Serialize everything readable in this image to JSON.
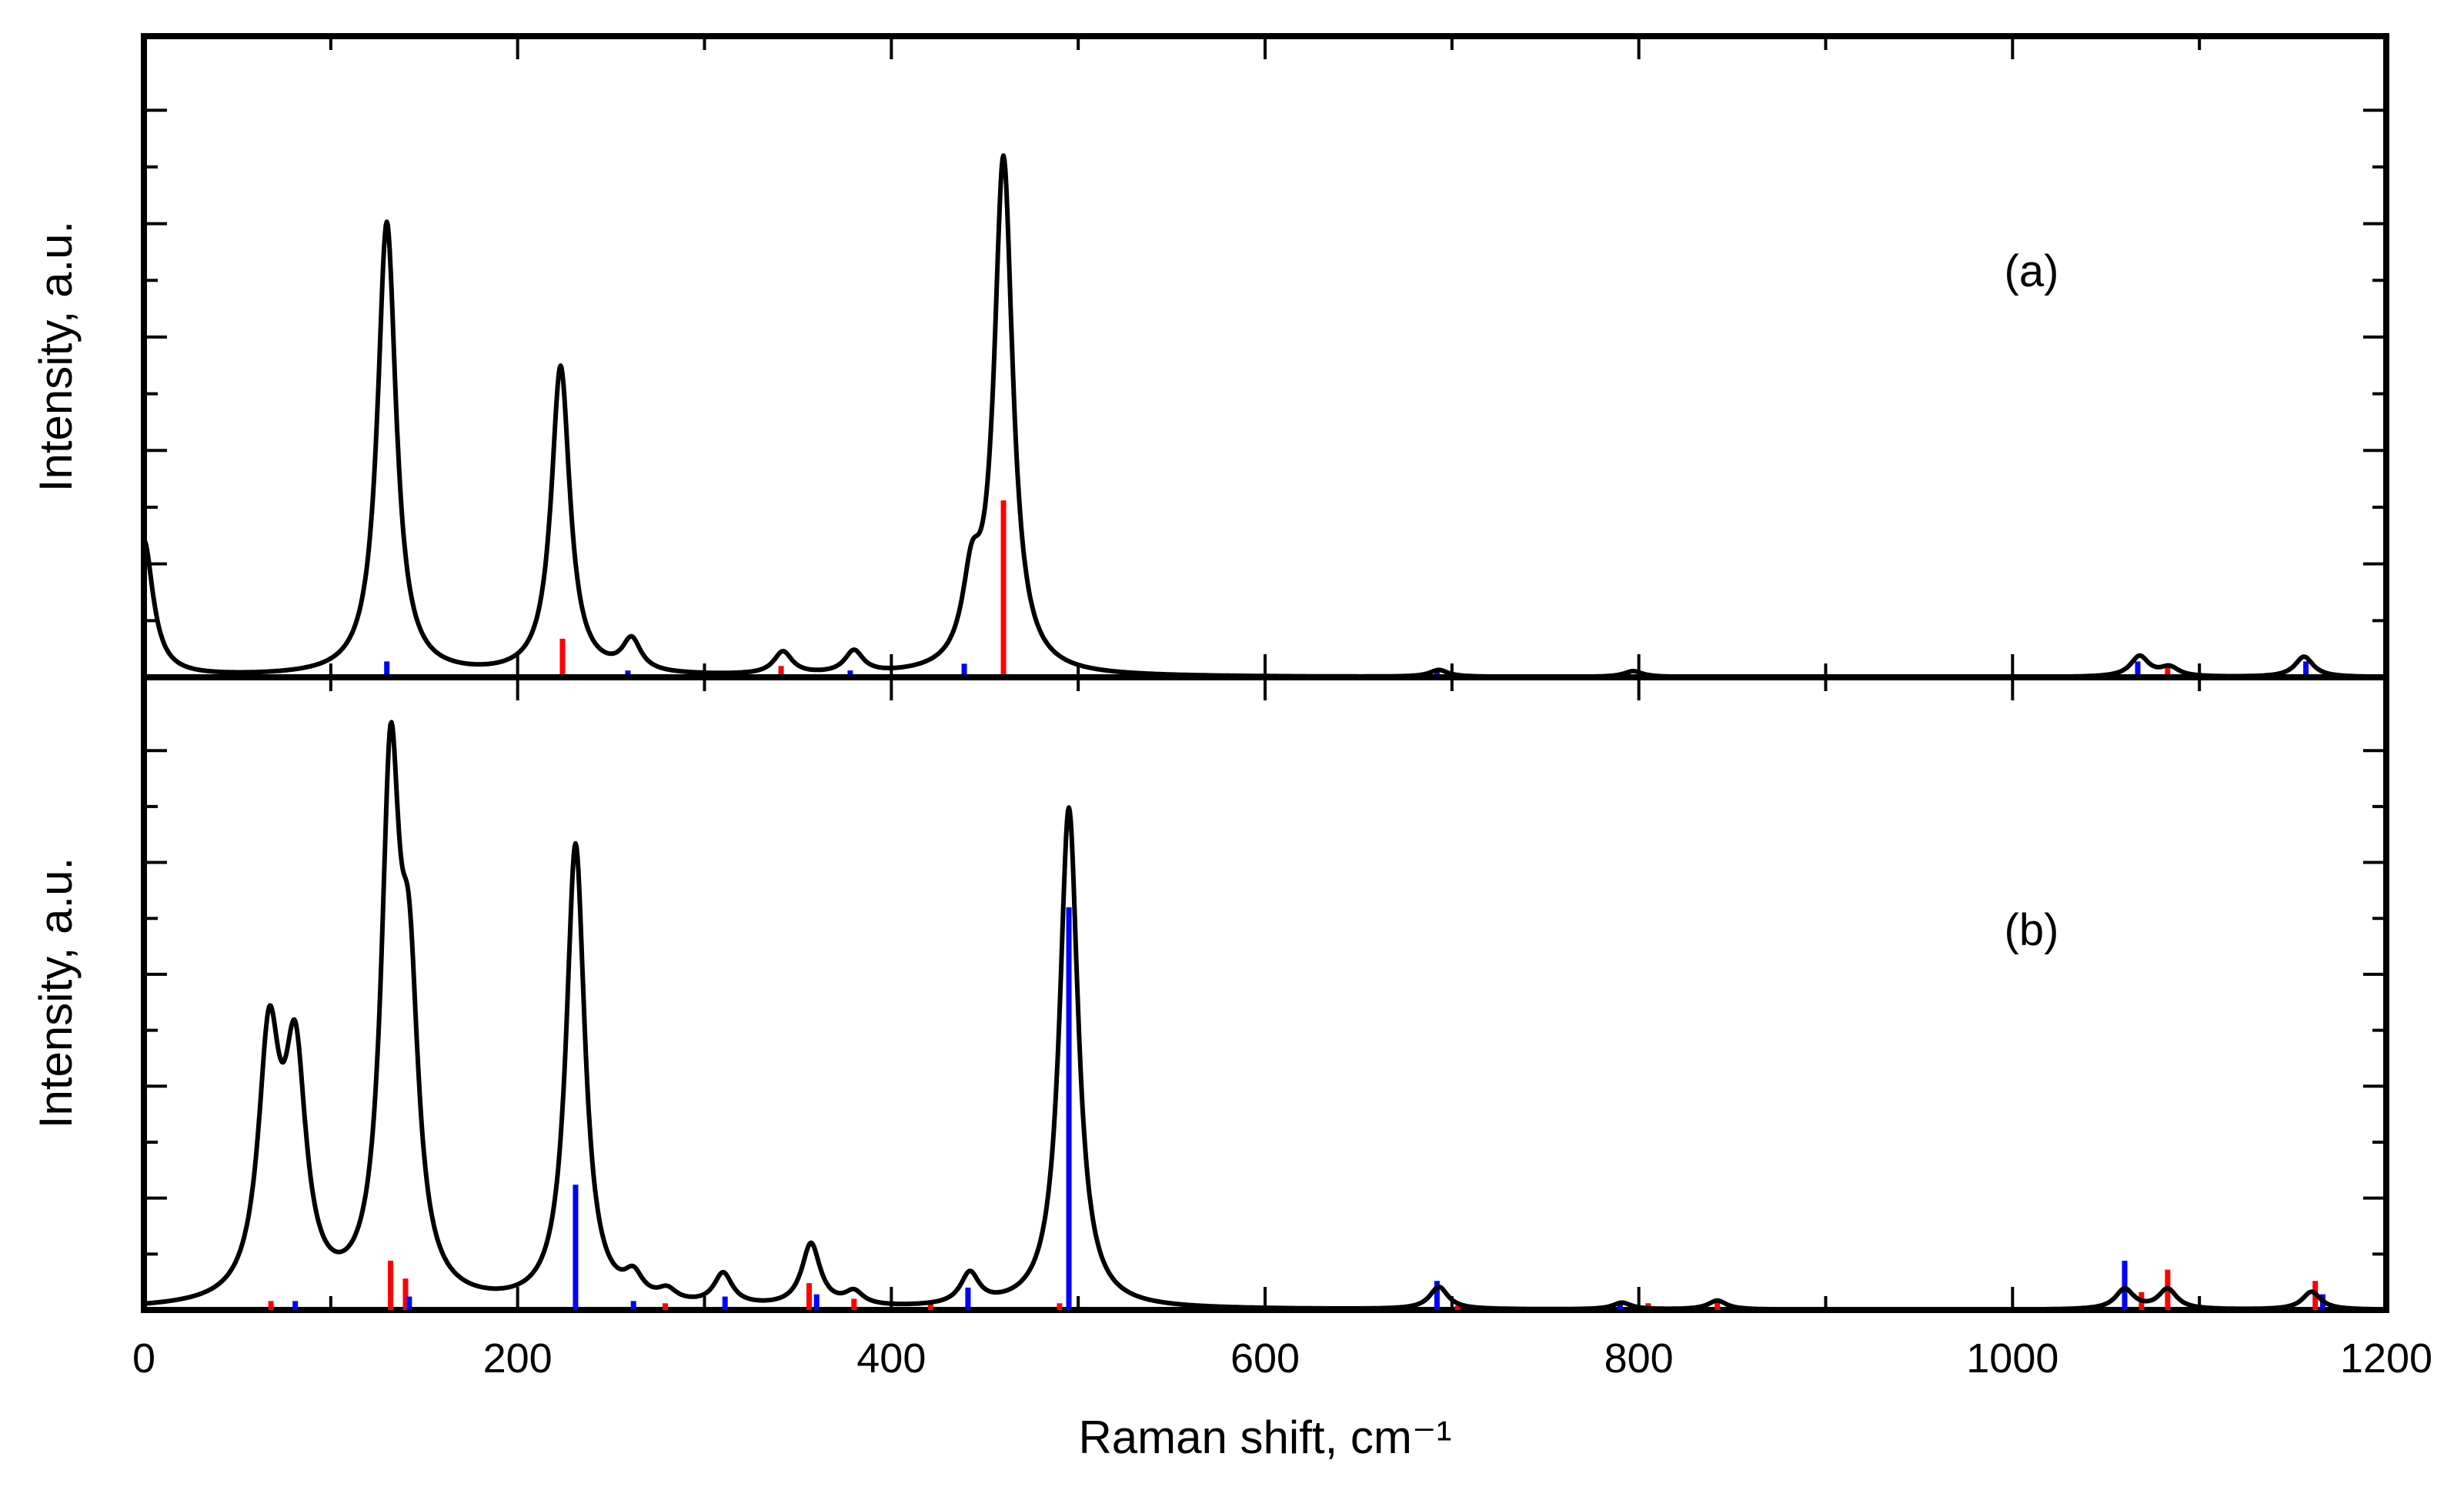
{
  "chart_data": [
    {
      "type": "line",
      "panel": "a",
      "label": "(a)",
      "xlabel": "Raman shift, cm⁻¹",
      "ylabel": "Intensity, a.u.",
      "xlim": [
        0,
        1200
      ],
      "ylim": [
        0,
        100
      ],
      "xticks": [
        0,
        200,
        400,
        600,
        800,
        1000,
        1200
      ],
      "series": [
        {
          "name": "spectrum",
          "color": "#000000",
          "peaks": [
            {
              "x": 0,
              "y": 30,
              "w": 6
            },
            {
              "x": 130,
              "y": 100,
              "w": 6
            },
            {
              "x": 223,
              "y": 68,
              "w": 6
            },
            {
              "x": 261,
              "y": 7,
              "w": 6
            },
            {
              "x": 342,
              "y": 5,
              "w": 6
            },
            {
              "x": 380,
              "y": 5,
              "w": 6
            },
            {
              "x": 443,
              "y": 17,
              "w": 6
            },
            {
              "x": 460,
              "y": 113,
              "w": 6
            },
            {
              "x": 693,
              "y": 1.5,
              "w": 6
            },
            {
              "x": 797,
              "y": 1.3,
              "w": 6
            },
            {
              "x": 1068,
              "y": 4.5,
              "w": 6
            },
            {
              "x": 1084,
              "y": 2,
              "w": 6
            },
            {
              "x": 1156,
              "y": 4.5,
              "w": 6
            }
          ]
        },
        {
          "name": "red sticks",
          "color": "#ff0000",
          "x": [
            224,
            341,
            460,
            1083
          ],
          "values": [
            8.5,
            2.5,
            39,
            2.5
          ]
        },
        {
          "name": "blue sticks",
          "color": "#0000ff",
          "x": [
            130,
            259,
            378,
            439,
            692,
            794,
            1067,
            1157
          ],
          "values": [
            3.5,
            1.5,
            1.5,
            3,
            1.5,
            1.2,
            3.5,
            3.5
          ]
        }
      ]
    },
    {
      "type": "line",
      "panel": "b",
      "label": "(b)",
      "xlabel": "Raman shift, cm⁻¹",
      "ylabel": "Intensity, a.u.",
      "xlim": [
        0,
        1200
      ],
      "ylim": [
        0,
        100
      ],
      "xticks": [
        0,
        200,
        400,
        600,
        800,
        1000,
        1200
      ],
      "series": [
        {
          "name": "spectrum",
          "color": "#000000",
          "peaks": [
            {
              "x": 67,
              "y": 56,
              "w": 7
            },
            {
              "x": 81,
              "y": 51,
              "w": 7
            },
            {
              "x": 132,
              "y": 113,
              "w": 6
            },
            {
              "x": 142,
              "y": 60,
              "w": 6
            },
            {
              "x": 231,
              "y": 103,
              "w": 6
            },
            {
              "x": 262,
              "y": 5,
              "w": 6
            },
            {
              "x": 280,
              "y": 2.5,
              "w": 6
            },
            {
              "x": 310,
              "y": 7,
              "w": 6
            },
            {
              "x": 357,
              "y": 14,
              "w": 6
            },
            {
              "x": 380,
              "y": 3,
              "w": 6
            },
            {
              "x": 442,
              "y": 7,
              "w": 6
            },
            {
              "x": 495,
              "y": 112,
              "w": 6
            },
            {
              "x": 693,
              "y": 5,
              "w": 6
            },
            {
              "x": 791,
              "y": 1.5,
              "w": 6
            },
            {
              "x": 842,
              "y": 2,
              "w": 6
            },
            {
              "x": 1060,
              "y": 4.5,
              "w": 6
            },
            {
              "x": 1083,
              "y": 4.5,
              "w": 6
            },
            {
              "x": 1160,
              "y": 4,
              "w": 6
            }
          ]
        },
        {
          "name": "red sticks",
          "color": "#ff0000",
          "x": [
            68,
            132,
            140,
            279,
            356,
            380,
            421,
            490,
            703,
            805,
            842,
            1069,
            1083,
            1162
          ],
          "values": [
            2,
            11,
            7,
            1.5,
            6,
            2.5,
            1.5,
            1.5,
            1,
            1.5,
            2.5,
            4,
            9,
            6.5
          ]
        },
        {
          "name": "blue sticks",
          "color": "#0000ff",
          "x": [
            81,
            142,
            231,
            262,
            311,
            360,
            441,
            495,
            692,
            790,
            1060,
            1166
          ],
          "values": [
            2,
            3,
            28,
            2,
            3,
            3.5,
            5,
            90,
            6.5,
            2,
            11,
            3.5
          ]
        }
      ]
    }
  ]
}
